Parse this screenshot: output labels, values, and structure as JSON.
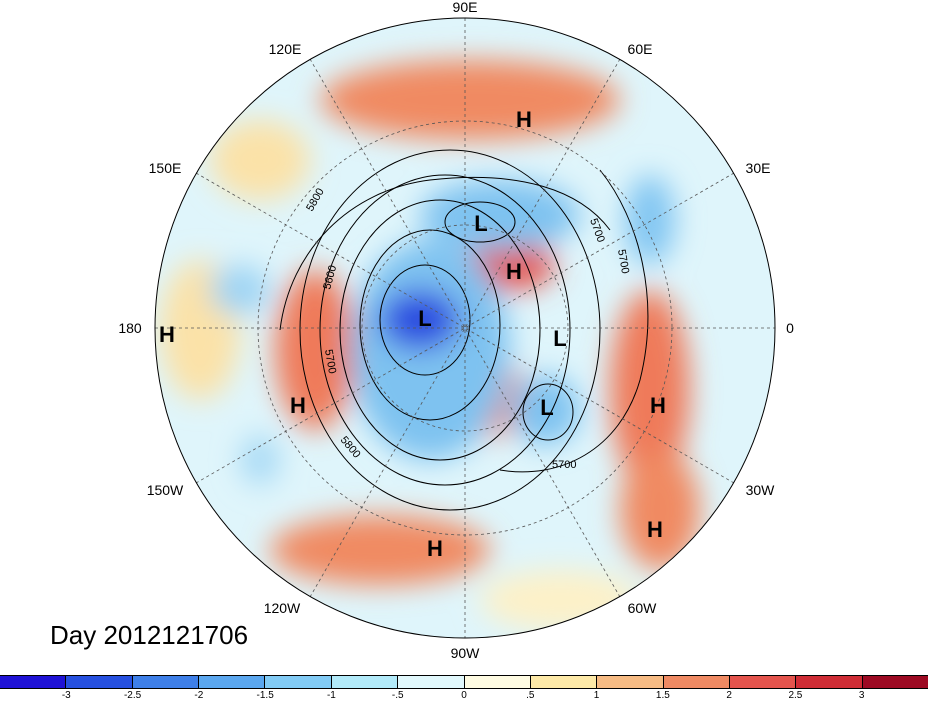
{
  "title": "Day 2012121706",
  "map": {
    "projection": "north-polar-stereographic",
    "longitude_labels": [
      "90E",
      "60E",
      "30E",
      "0",
      "30W",
      "60W",
      "90W",
      "120W",
      "150W",
      "180",
      "150E",
      "120E"
    ],
    "pressure_centers": [
      {
        "label": "H",
        "name": "high-siberia-pacific"
      },
      {
        "label": "L",
        "name": "low-north-asia"
      },
      {
        "label": "H",
        "name": "high-arctic"
      },
      {
        "label": "L",
        "name": "low-canada"
      },
      {
        "label": "L",
        "name": "low-greenland"
      },
      {
        "label": "L",
        "name": "low-north-atlantic"
      },
      {
        "label": "H",
        "name": "high-east-atlantic"
      },
      {
        "label": "H",
        "name": "high-subtropical-atlantic"
      },
      {
        "label": "H",
        "name": "high-gulf-of-mexico"
      },
      {
        "label": "H",
        "name": "high-north-pacific"
      },
      {
        "label": "H",
        "name": "high-dateline"
      }
    ],
    "contour_labels": [
      "5800",
      "5700",
      "5600",
      "5700",
      "5800",
      "5700",
      "5700"
    ],
    "colors": {
      "strong_negative": "#1a1adf",
      "negative": "#6fc6f5",
      "weak_negative": "#d8f3fa",
      "weak_positive": "#fbf0c4",
      "positive": "#f4a77a",
      "strong_positive": "#d52d3a"
    }
  },
  "colorbar": {
    "colors": [
      "#1f12d6",
      "#2650e0",
      "#3e7fe8",
      "#5ba7ef",
      "#82cbf5",
      "#b2eaf9",
      "#e1f8fc",
      "#fefbe2",
      "#fde9a8",
      "#f6bb84",
      "#ef8a63",
      "#e4544d",
      "#cf2c35",
      "#9d0a23"
    ],
    "ticks": [
      "-3",
      "-2.5",
      "-2",
      "-1.5",
      "-1",
      "-.5",
      "0",
      ".5",
      "1",
      "1.5",
      "2",
      "2.5",
      "3"
    ]
  }
}
